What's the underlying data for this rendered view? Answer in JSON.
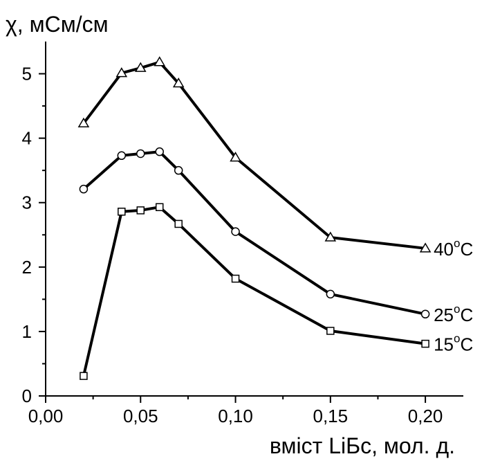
{
  "chart_data": {
    "type": "line",
    "ylabel": "χ, мСм/см",
    "xlabel": "вміст LiБс, мол. д.",
    "xlim": [
      0.0,
      0.22
    ],
    "ylim": [
      0,
      5.5
    ],
    "x_ticks": [
      {
        "value": 0.0,
        "label": "0,00"
      },
      {
        "value": 0.05,
        "label": "0,05"
      },
      {
        "value": 0.1,
        "label": "0,10"
      },
      {
        "value": 0.15,
        "label": "0,15"
      },
      {
        "value": 0.2,
        "label": "0,20"
      }
    ],
    "y_ticks": [
      {
        "value": 0,
        "label": "0"
      },
      {
        "value": 1,
        "label": "1"
      },
      {
        "value": 2,
        "label": "2"
      },
      {
        "value": 3,
        "label": "3"
      },
      {
        "value": 4,
        "label": "4"
      },
      {
        "value": 5,
        "label": "5"
      }
    ],
    "grid": false,
    "series": [
      {
        "name": "40°C",
        "label_main": "40",
        "label_sup": "o",
        "label_unit": "C",
        "marker": "triangle",
        "x": [
          0.02,
          0.04,
          0.05,
          0.06,
          0.07,
          0.1,
          0.15,
          0.2
        ],
        "y": [
          4.23,
          5.01,
          5.09,
          5.18,
          4.85,
          3.7,
          2.46,
          2.29
        ]
      },
      {
        "name": "25°C",
        "label_main": "25",
        "label_sup": "o",
        "label_unit": "C",
        "marker": "circle",
        "x": [
          0.02,
          0.04,
          0.05,
          0.06,
          0.07,
          0.1,
          0.15,
          0.2
        ],
        "y": [
          3.21,
          3.73,
          3.76,
          3.79,
          3.5,
          2.55,
          1.58,
          1.27
        ]
      },
      {
        "name": "15°C",
        "label_main": "15",
        "label_sup": "o",
        "label_unit": "C",
        "marker": "square",
        "x": [
          0.02,
          0.04,
          0.05,
          0.06,
          0.07,
          0.1,
          0.15,
          0.2
        ],
        "y": [
          0.31,
          2.86,
          2.88,
          2.93,
          2.67,
          1.82,
          1.01,
          0.81
        ]
      }
    ]
  }
}
